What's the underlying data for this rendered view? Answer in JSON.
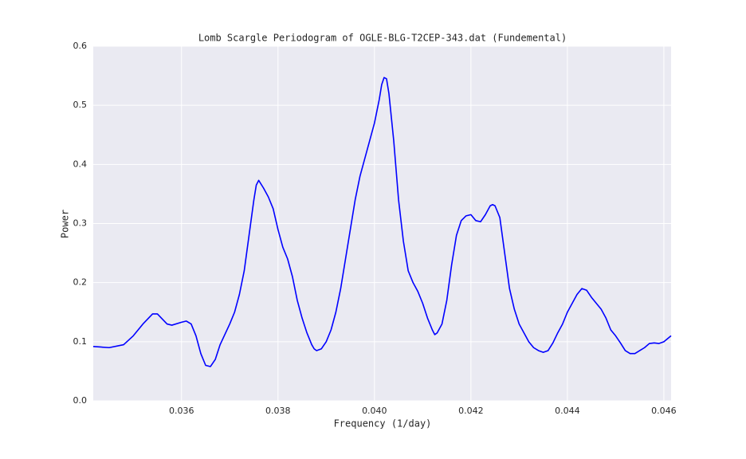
{
  "chart_data": {
    "type": "line",
    "title": "Lomb Scargle Periodogram of OGLE-BLG-T2CEP-343.dat (Fundemental)",
    "xlabel": "Frequency (1/day)",
    "ylabel": "Power",
    "x": [
      0.03417,
      0.0345,
      0.0348,
      0.035,
      0.0352,
      0.0354,
      0.0355,
      0.0357,
      0.0358,
      0.036,
      0.0361,
      0.0362,
      0.0363,
      0.0364,
      0.0365,
      0.0366,
      0.0367,
      0.0368,
      0.037,
      0.0371,
      0.0372,
      0.0373,
      0.0374,
      0.0375,
      0.03755,
      0.0376,
      0.0377,
      0.0378,
      0.0379,
      0.038,
      0.0381,
      0.0382,
      0.0383,
      0.0384,
      0.0385,
      0.0386,
      0.0387,
      0.03875,
      0.0388,
      0.0389,
      0.039,
      0.0391,
      0.0392,
      0.0393,
      0.0394,
      0.0395,
      0.0396,
      0.0397,
      0.0398,
      0.0399,
      0.04,
      0.0401,
      0.04015,
      0.0402,
      0.04025,
      0.0403,
      0.0404,
      0.0405,
      0.0406,
      0.0407,
      0.0408,
      0.0409,
      0.041,
      0.0411,
      0.0412,
      0.04125,
      0.0413,
      0.0414,
      0.0415,
      0.0416,
      0.0417,
      0.0418,
      0.0419,
      0.042,
      0.0421,
      0.0422,
      0.0423,
      0.0424,
      0.04245,
      0.0425,
      0.0426,
      0.0427,
      0.0428,
      0.0429,
      0.043,
      0.0431,
      0.0432,
      0.0433,
      0.0434,
      0.0435,
      0.0436,
      0.0437,
      0.0438,
      0.0439,
      0.044,
      0.0441,
      0.0442,
      0.0443,
      0.0444,
      0.0445,
      0.0446,
      0.0447,
      0.0448,
      0.0449,
      0.045,
      0.0451,
      0.0452,
      0.0453,
      0.0454,
      0.0455,
      0.0456,
      0.0457,
      0.0458,
      0.0459,
      0.046,
      0.04615
    ],
    "series": [
      {
        "name": "Power",
        "color": "#0000ff",
        "values": [
          0.092,
          0.09,
          0.095,
          0.11,
          0.13,
          0.147,
          0.147,
          0.13,
          0.128,
          0.133,
          0.135,
          0.13,
          0.11,
          0.08,
          0.06,
          0.058,
          0.07,
          0.095,
          0.13,
          0.15,
          0.18,
          0.22,
          0.28,
          0.34,
          0.365,
          0.373,
          0.36,
          0.345,
          0.325,
          0.29,
          0.26,
          0.24,
          0.21,
          0.17,
          0.14,
          0.115,
          0.095,
          0.088,
          0.085,
          0.088,
          0.1,
          0.12,
          0.15,
          0.19,
          0.24,
          0.29,
          0.34,
          0.38,
          0.41,
          0.44,
          0.47,
          0.51,
          0.535,
          0.547,
          0.545,
          0.52,
          0.44,
          0.34,
          0.27,
          0.22,
          0.2,
          0.185,
          0.165,
          0.14,
          0.12,
          0.112,
          0.115,
          0.13,
          0.17,
          0.23,
          0.28,
          0.305,
          0.313,
          0.315,
          0.305,
          0.303,
          0.315,
          0.33,
          0.332,
          0.33,
          0.31,
          0.25,
          0.19,
          0.155,
          0.13,
          0.115,
          0.1,
          0.09,
          0.085,
          0.082,
          0.085,
          0.098,
          0.115,
          0.13,
          0.15,
          0.165,
          0.18,
          0.19,
          0.187,
          0.175,
          0.165,
          0.155,
          0.14,
          0.12,
          0.11,
          0.098,
          0.085,
          0.08,
          0.08,
          0.085,
          0.09,
          0.097,
          0.098,
          0.097,
          0.1,
          0.11
        ]
      }
    ],
    "xlim": [
      0.03417,
      0.04615
    ],
    "xticks": [
      0.036,
      0.038,
      {
        "value": 0.04,
        "label": "0.040"
      },
      0.042,
      0.044,
      0.046
    ],
    "ylim": [
      0,
      0.6
    ],
    "yticks": [
      {
        "value": 0,
        "label": "0.0"
      },
      0.1,
      0.2,
      0.3,
      0.4,
      0.5,
      0.6
    ],
    "grid": true
  }
}
